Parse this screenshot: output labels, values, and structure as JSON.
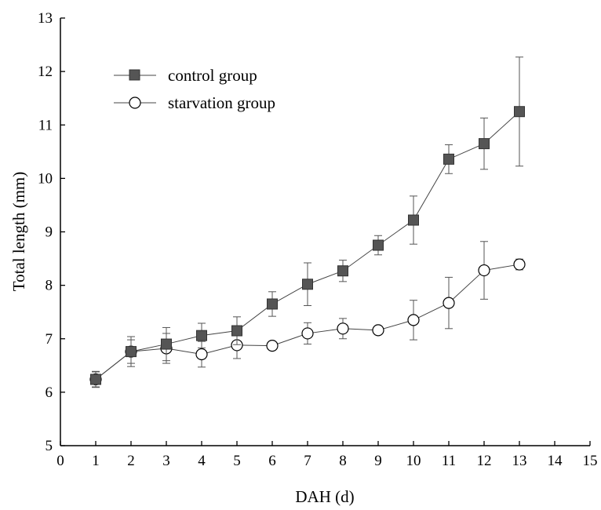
{
  "chart_data": {
    "type": "line",
    "xlabel": "DAH (d)",
    "ylabel": "Total length (mm)",
    "xlim": [
      0,
      15
    ],
    "ylim": [
      5,
      13
    ],
    "x_ticks": [
      0,
      1,
      2,
      3,
      4,
      5,
      6,
      7,
      8,
      9,
      10,
      11,
      12,
      13,
      14,
      15
    ],
    "y_ticks": [
      5,
      6,
      7,
      8,
      9,
      10,
      11,
      12,
      13
    ],
    "grid": false,
    "legend_position": "top-left",
    "series": [
      {
        "name": "control group",
        "marker": "filled-square",
        "color": "#555555",
        "x": [
          1,
          2,
          3,
          4,
          5,
          6,
          7,
          8,
          9,
          10,
          11,
          12,
          13
        ],
        "y": [
          6.24,
          6.76,
          6.9,
          7.06,
          7.15,
          7.65,
          8.02,
          8.27,
          8.75,
          9.22,
          10.36,
          10.65,
          11.25
        ],
        "error": [
          0.15,
          0.28,
          0.31,
          0.23,
          0.26,
          0.23,
          0.4,
          0.2,
          0.18,
          0.45,
          0.27,
          0.48,
          1.02
        ]
      },
      {
        "name": "starvation group",
        "marker": "open-circle",
        "color": "#000000",
        "x": [
          1,
          2,
          3,
          4,
          5,
          6,
          7,
          8,
          9,
          10,
          11,
          12,
          13
        ],
        "y": [
          6.24,
          6.76,
          6.82,
          6.71,
          6.88,
          6.87,
          7.1,
          7.19,
          7.16,
          7.35,
          7.67,
          8.28,
          8.39
        ],
        "error": [
          0.14,
          0.22,
          0.28,
          0.24,
          0.25,
          0.05,
          0.2,
          0.19,
          0.06,
          0.37,
          0.48,
          0.54,
          0.1
        ]
      }
    ]
  }
}
